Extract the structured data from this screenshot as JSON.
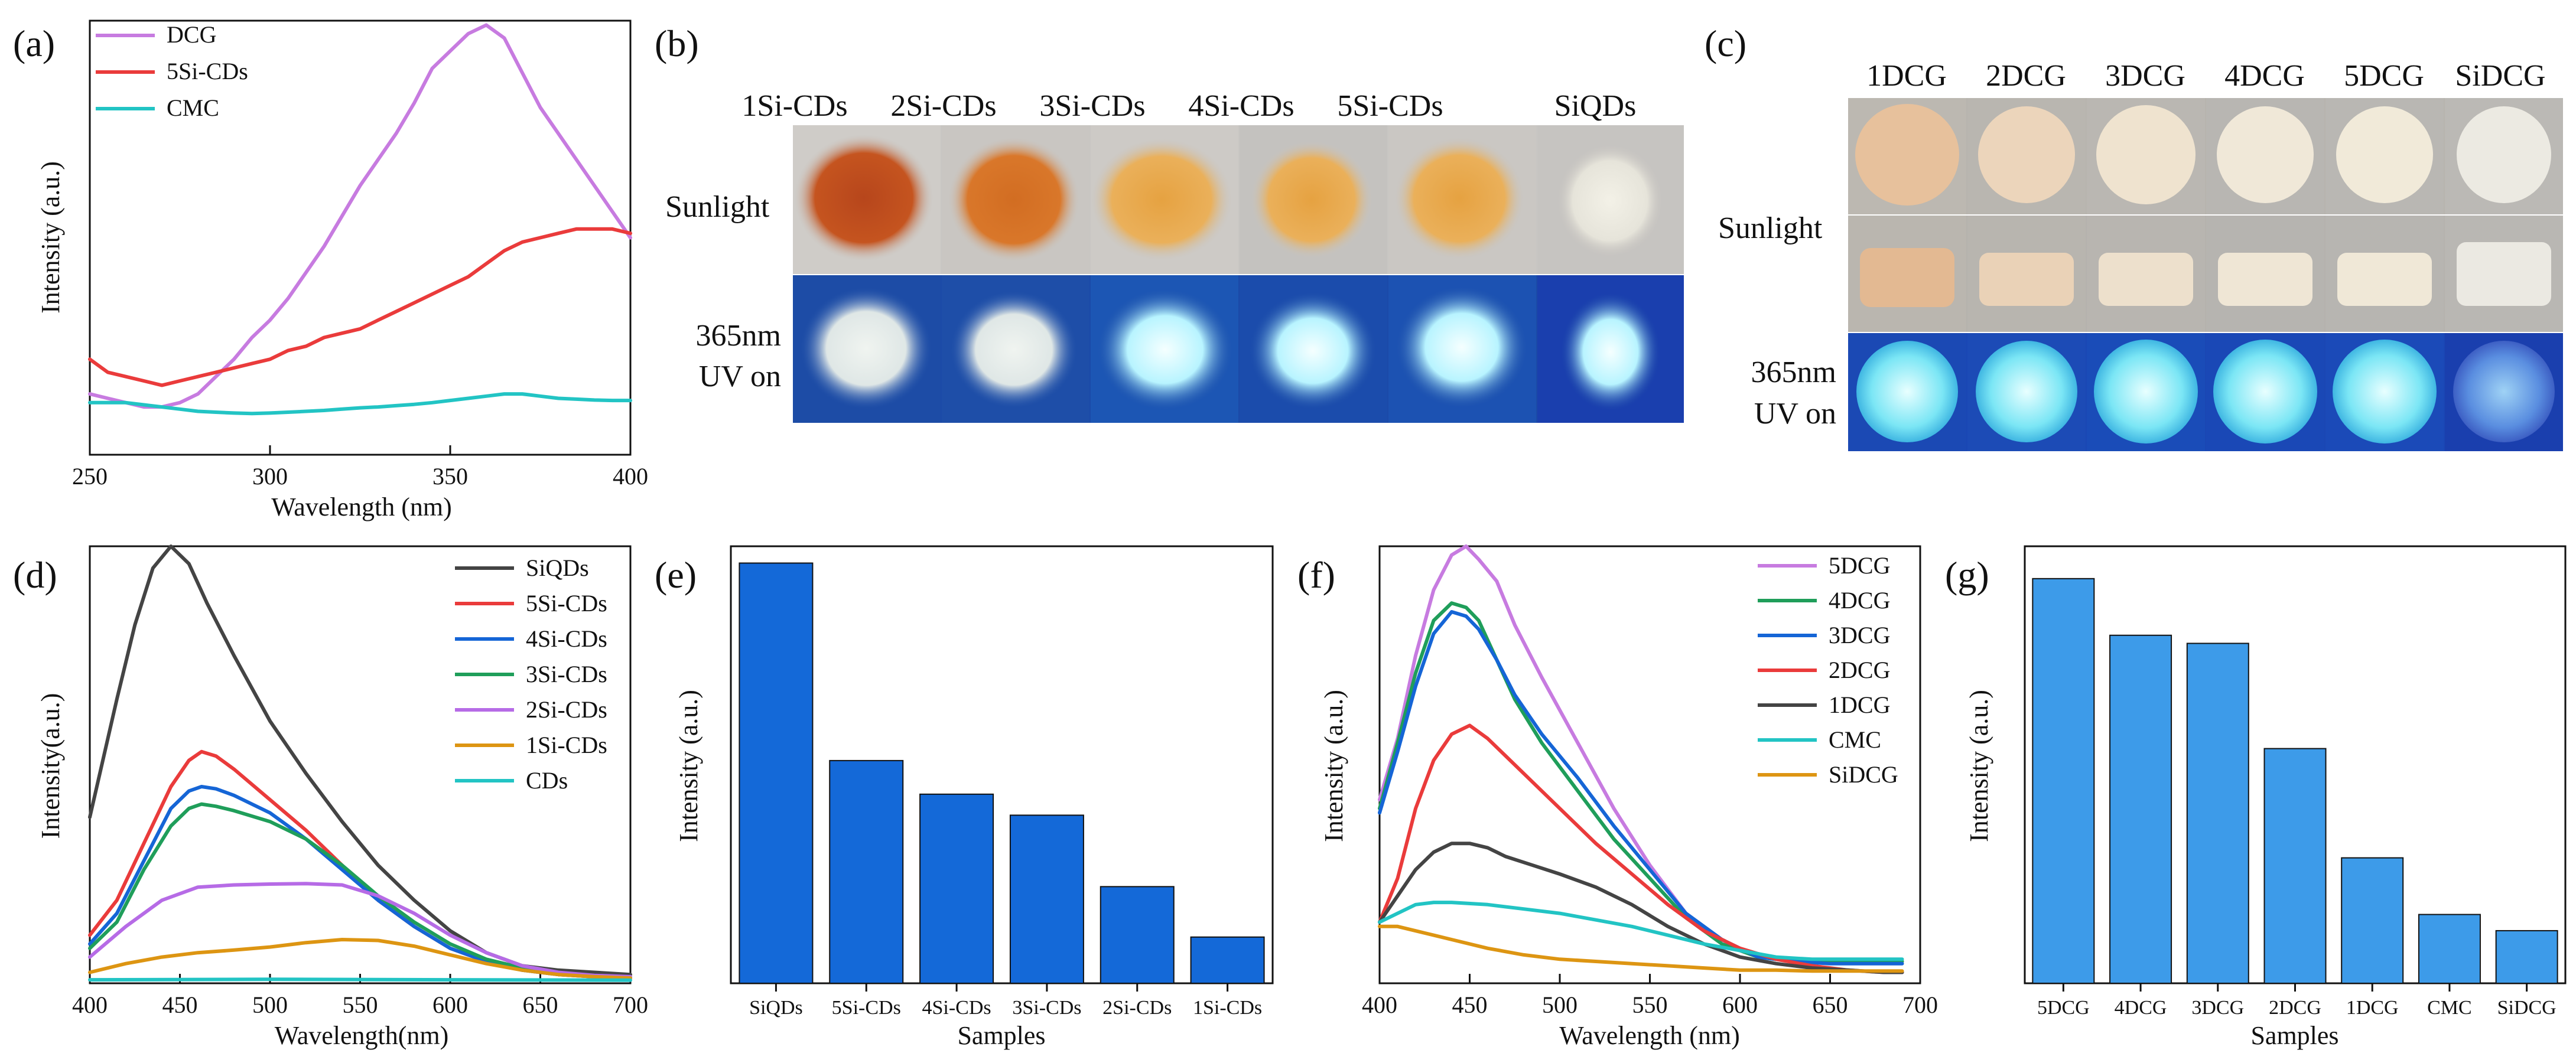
{
  "panels": {
    "a": {
      "letter": "(a)",
      "chart_data": {
        "type": "line",
        "xlabel": "Wavelength (nm)",
        "ylabel": "Intensity (a.u.)",
        "xlim": [
          250,
          400
        ],
        "xticks": [
          250,
          300,
          350,
          400
        ],
        "ylim": [
          0,
          100
        ],
        "series": [
          {
            "name": "DCG",
            "color": "#c77be0",
            "x": [
              250,
              255,
              260,
              265,
              270,
              275,
              280,
              285,
              290,
              295,
              300,
              305,
              310,
              315,
              320,
              325,
              330,
              335,
              340,
              345,
              350,
              355,
              360,
              365,
              370,
              375,
              380,
              385,
              390,
              395,
              400
            ],
            "y": [
              14,
              13,
              12,
              11,
              11,
              12,
              14,
              18,
              22,
              27,
              31,
              36,
              42,
              48,
              55,
              62,
              68,
              74,
              81,
              89,
              93,
              97,
              99,
              96,
              88,
              80,
              74,
              68,
              62,
              56,
              50
            ]
          },
          {
            "name": "5Si-CDs",
            "color": "#ea3b3b",
            "x": [
              250,
              255,
              260,
              265,
              270,
              275,
              280,
              285,
              290,
              295,
              300,
              305,
              310,
              315,
              320,
              325,
              330,
              335,
              340,
              345,
              350,
              355,
              360,
              365,
              370,
              375,
              380,
              385,
              390,
              395,
              400
            ],
            "y": [
              22,
              19,
              18,
              17,
              16,
              17,
              18,
              19,
              20,
              21,
              22,
              24,
              25,
              27,
              28,
              29,
              31,
              33,
              35,
              37,
              39,
              41,
              44,
              47,
              49,
              50,
              51,
              52,
              52,
              52,
              51
            ]
          },
          {
            "name": "CMC",
            "color": "#22c4c4",
            "x": [
              250,
              255,
              260,
              265,
              270,
              275,
              280,
              285,
              290,
              295,
              300,
              305,
              310,
              315,
              320,
              325,
              330,
              335,
              340,
              345,
              350,
              355,
              360,
              365,
              370,
              375,
              380,
              385,
              390,
              395,
              400
            ],
            "y": [
              12,
              12,
              12,
              11.5,
              11,
              10.5,
              10,
              9.8,
              9.6,
              9.5,
              9.6,
              9.8,
              10,
              10.2,
              10.5,
              10.8,
              11,
              11.3,
              11.6,
              12,
              12.5,
              13,
              13.5,
              14,
              14,
              13.5,
              13,
              12.8,
              12.6,
              12.5,
              12.5
            ]
          }
        ]
      }
    },
    "b": {
      "letter": "(b)",
      "columns": [
        "1Si-CDs",
        "2Si-CDs",
        "3Si-CDs",
        "4Si-CDs",
        "5Si-CDs",
        "SiQDs"
      ],
      "row1_label": "Sunlight",
      "row2_label_1": "365nm",
      "row2_label_2": "UV on"
    },
    "c": {
      "letter": "(c)",
      "columns": [
        "1DCG",
        "2DCG",
        "3DCG",
        "4DCG",
        "5DCG",
        "SiDCG"
      ],
      "row1_label": "Sunlight",
      "row2_label_1": "365nm",
      "row2_label_2": "UV on"
    },
    "d": {
      "letter": "(d)",
      "chart_data": {
        "type": "line",
        "xlabel": "Wavelength(nm)",
        "ylabel": "Intensity(a.u.)",
        "xlim": [
          400,
          700
        ],
        "xticks": [
          400,
          450,
          500,
          550,
          600,
          650,
          700
        ],
        "ylim": [
          0,
          100
        ],
        "series": [
          {
            "name": "SiQDs",
            "color": "#444444",
            "x": [
              400,
              415,
              425,
              435,
              445,
              455,
              465,
              480,
              500,
              520,
              540,
              560,
              580,
              600,
              620,
              640,
              660,
              680,
              700
            ],
            "y": [
              38,
              65,
              82,
              95,
              100,
              96,
              87,
              75,
              60,
              48,
              37,
              27,
              19,
              12,
              7,
              4,
              3,
              2.5,
              2
            ]
          },
          {
            "name": "5Si-CDs",
            "color": "#ea3b3b",
            "x": [
              400,
              415,
              430,
              445,
              455,
              462,
              470,
              480,
              500,
              520,
              540,
              560,
              580,
              600,
              620,
              640,
              660,
              680,
              700
            ],
            "y": [
              11,
              19,
              32,
              45,
              51,
              53,
              52,
              49,
              42,
              35,
              27,
              19,
              13,
              8,
              5,
              3,
              2,
              1.5,
              1.2
            ]
          },
          {
            "name": "4Si-CDs",
            "color": "#1565d6",
            "x": [
              400,
              415,
              430,
              445,
              455,
              462,
              470,
              480,
              500,
              520,
              540,
              560,
              580,
              600,
              620,
              640,
              660,
              680,
              700
            ],
            "y": [
              9,
              16,
              28,
              40,
              44,
              45,
              44.5,
              43,
              39,
              33,
              26,
              19,
              13,
              8,
              5,
              3,
              2,
              1.5,
              1.2
            ]
          },
          {
            "name": "3Si-CDs",
            "color": "#1f9e5a",
            "x": [
              400,
              415,
              430,
              445,
              455,
              462,
              470,
              480,
              500,
              520,
              540,
              560,
              580,
              600,
              620,
              640,
              660,
              680,
              700
            ],
            "y": [
              8,
              14,
              26,
              36,
              40,
              41,
              40.5,
              39.5,
              37,
              33,
              27,
              20,
              14,
              9,
              5.5,
              3.5,
              2.2,
              1.6,
              1.3
            ]
          },
          {
            "name": "2Si-CDs",
            "color": "#b66be6",
            "x": [
              400,
              420,
              440,
              460,
              480,
              500,
              520,
              540,
              560,
              580,
              600,
              620,
              640,
              660,
              680,
              700
            ],
            "y": [
              6,
              13,
              19,
              22,
              22.5,
              22.7,
              22.8,
              22.5,
              20,
              16,
              11,
              7,
              4,
              2.5,
              1.8,
              1.5
            ]
          },
          {
            "name": "1Si-CDs",
            "color": "#dd9512",
            "x": [
              400,
              420,
              440,
              460,
              480,
              500,
              520,
              540,
              560,
              580,
              600,
              620,
              640,
              660,
              680,
              700
            ],
            "y": [
              2.5,
              4.5,
              6,
              7,
              7.6,
              8.3,
              9.3,
              10,
              9.8,
              8.5,
              6.5,
              4.5,
              3,
              2,
              1.5,
              1.2
            ]
          },
          {
            "name": "CDs",
            "color": "#22c4c4",
            "x": [
              400,
              500,
              600,
              700
            ],
            "y": [
              0.8,
              0.9,
              0.8,
              0.7
            ]
          }
        ]
      }
    },
    "e": {
      "letter": "(e)",
      "chart_data": {
        "type": "bar",
        "xlabel": "Samples",
        "ylabel": "Intensity (a.u.)",
        "color": "#1469d8",
        "ylim": [
          0,
          104
        ],
        "categories": [
          "SiQDs",
          "5Si-CDs",
          "4Si-CDs",
          "3Si-CDs",
          "2Si-CDs",
          "1Si-CDs"
        ],
        "values": [
          100,
          53,
          45,
          40,
          23,
          11
        ]
      }
    },
    "f": {
      "letter": "(f)",
      "chart_data": {
        "type": "line",
        "xlabel": "Wavelength (nm)",
        "ylabel": "Intensity (a.u.)",
        "xlim": [
          400,
          700
        ],
        "xticks": [
          400,
          450,
          500,
          550,
          600,
          650,
          700
        ],
        "ylim": [
          0,
          100
        ],
        "series": [
          {
            "name": "5DCG",
            "color": "#c77be0",
            "x": [
              400,
              410,
              420,
              430,
              440,
              448,
              455,
              465,
              475,
              490,
              510,
              530,
              550,
              570,
              590,
              610,
              630,
              650,
              670,
              690
            ],
            "y": [
              42,
              56,
              75,
              90,
              98,
              100,
              97,
              92,
              82,
              70,
              55,
              40,
              27,
              16,
              9,
              6,
              5,
              5,
              5,
              5
            ]
          },
          {
            "name": "4DCG",
            "color": "#1f9e5a",
            "x": [
              400,
              410,
              420,
              430,
              440,
              448,
              455,
              465,
              475,
              490,
              510,
              530,
              550,
              570,
              590,
              610,
              630,
              650,
              670,
              690
            ],
            "y": [
              40,
              55,
              71,
              83,
              87,
              86,
              83,
              74,
              65,
              55,
              44,
              33,
              24,
              15,
              9,
              6,
              5,
              5,
              5,
              5
            ]
          },
          {
            "name": "3DCG",
            "color": "#1565d6",
            "x": [
              400,
              410,
              420,
              430,
              440,
              448,
              455,
              465,
              475,
              490,
              510,
              530,
              550,
              570,
              590,
              610,
              630,
              650,
              670,
              690
            ],
            "y": [
              39,
              53,
              68,
              80,
              85,
              84,
              81,
              74,
              66,
              57,
              47,
              36,
              26,
              16,
              10,
              6,
              5,
              4.5,
              4.5,
              4.5
            ]
          },
          {
            "name": "2DCG",
            "color": "#ea3b3b",
            "x": [
              400,
              410,
              420,
              430,
              440,
              450,
              460,
              470,
              485,
              500,
              520,
              540,
              560,
              580,
              600,
              620,
              640,
              660,
              680,
              690
            ],
            "y": [
              14,
              24,
              40,
              51,
              57,
              59,
              56,
              52,
              46,
              40,
              32,
              25,
              18,
              12,
              8,
              5.5,
              4,
              3,
              2.5,
              2.5
            ]
          },
          {
            "name": "1DCG",
            "color": "#444444",
            "x": [
              400,
              410,
              420,
              430,
              440,
              450,
              460,
              470,
              485,
              500,
              520,
              540,
              560,
              580,
              600,
              620,
              640,
              660,
              680,
              690
            ],
            "y": [
              14,
              20,
              26,
              30,
              32,
              32,
              31,
              29,
              27,
              25,
              22,
              18,
              13,
              9,
              6,
              4.5,
              3.5,
              3,
              2.5,
              2.5
            ]
          },
          {
            "name": "CMC",
            "color": "#22c4c4",
            "x": [
              400,
              410,
              420,
              430,
              440,
              460,
              480,
              500,
              520,
              540,
              560,
              580,
              600,
              620,
              640,
              660,
              680,
              690
            ],
            "y": [
              14,
              16,
              18,
              18.5,
              18.5,
              18,
              17,
              16,
              14.5,
              13,
              11,
              9,
              7.5,
              6,
              5.5,
              5.5,
              5.5,
              5.5
            ]
          },
          {
            "name": "SiDCG",
            "color": "#dd9512",
            "x": [
              400,
              410,
              420,
              430,
              440,
              460,
              480,
              500,
              520,
              540,
              560,
              580,
              600,
              620,
              640,
              660,
              680,
              690
            ],
            "y": [
              13,
              13,
              12,
              11,
              10,
              8,
              6.5,
              5.5,
              5,
              4.5,
              4,
              3.5,
              3,
              3,
              2.8,
              2.8,
              2.8,
              2.8
            ]
          }
        ]
      }
    },
    "g": {
      "letter": "(g)",
      "chart_data": {
        "type": "bar",
        "xlabel": "Samples",
        "ylabel": "Intensity (a.u.)",
        "color": "#3d9be9",
        "ylim": [
          0,
          108
        ],
        "categories": [
          "5DCG",
          "4DCG",
          "3DCG",
          "2DCG",
          "1DCG",
          "CMC",
          "SiDCG"
        ],
        "values": [
          100,
          86,
          84,
          58,
          31,
          17,
          13
        ]
      }
    }
  }
}
